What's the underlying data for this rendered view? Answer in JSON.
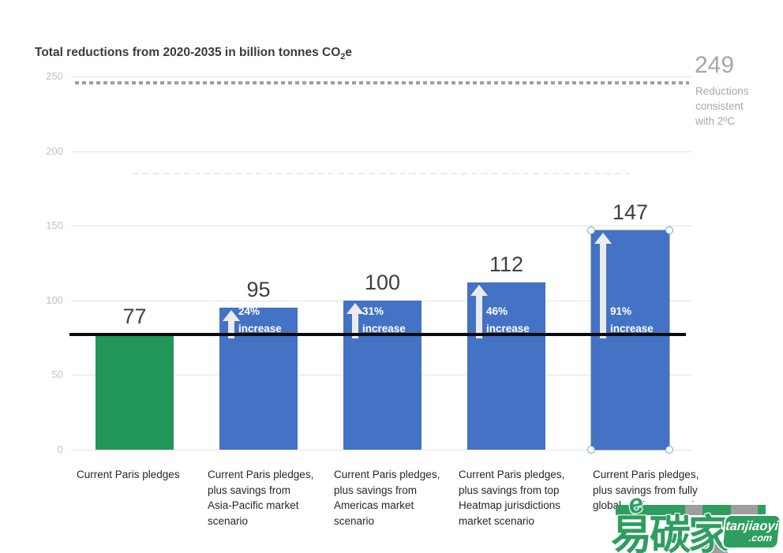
{
  "title": {
    "prefix": "Total reductions from 2020-2035 in billion tonnes CO",
    "subscript": "2",
    "suffix": "e"
  },
  "y_axis": {
    "ticks": [
      "250",
      "200",
      "150",
      "100",
      "50",
      "0"
    ]
  },
  "annotation_249": {
    "value": "249",
    "text": "Reductions\nconsistent\nwith 2ºC"
  },
  "chart_data": {
    "type": "bar",
    "title": "Total reductions from 2020-2035 in billion tonnes CO2e",
    "ylim": [
      0,
      250
    ],
    "y_ticks": [
      0,
      50,
      100,
      150,
      200,
      250
    ],
    "grid": true,
    "bars": [
      {
        "category": "Current Paris pledges",
        "value": 77,
        "value_label": "77",
        "color": "#219657"
      },
      {
        "category": "Current Paris pledges,\nplus savings from\nAsia-Pacific market\nscenario",
        "value": 95,
        "value_label": "95",
        "color": "#4472c4",
        "increase_pct": "24%",
        "increase_word": "increase"
      },
      {
        "category": "Current Paris pledges,\nplus savings from\nAmericas market\nscenario",
        "value": 100,
        "value_label": "100",
        "color": "#4472c4",
        "increase_pct": "31%",
        "increase_word": "increase"
      },
      {
        "category": "Current Paris pledges,\nplus savings from top\nHeatmap jurisdictions\nmarket scenario",
        "value": 112,
        "value_label": "112",
        "color": "#4472c4",
        "increase_pct": "46%",
        "increase_word": "increase"
      },
      {
        "category": "Current Paris pledges,\nplus savings from fully\nglobal market scenario",
        "value": 147,
        "value_label": "147",
        "color": "#4472c4",
        "increase_pct": "91%",
        "increase_word": "increase"
      }
    ],
    "reference_lines": [
      {
        "value": 249,
        "label": "Reductions consistent with 2ºC",
        "style": "dotted",
        "color": "#9e9e9e"
      },
      {
        "value": 185,
        "label": "",
        "style": "faint-dashed",
        "color": "#ececec"
      },
      {
        "value": 77,
        "label": "",
        "style": "solid-black",
        "color": "#0b0b0b"
      }
    ]
  },
  "colors": {
    "green_bar": "#219657",
    "blue_bar": "#4472c4",
    "arrow": "#ececec",
    "grid": "#e4e4e4",
    "tick_text": "#c2c2c2",
    "annotation_text": "#a8a8a8"
  },
  "watermark": {
    "cn": "易碳家",
    "e_mark": "e",
    "site": "tanjiaoyi",
    "tld": ".com",
    "green": "#2e9e60",
    "gray": "#9e9e9e"
  }
}
